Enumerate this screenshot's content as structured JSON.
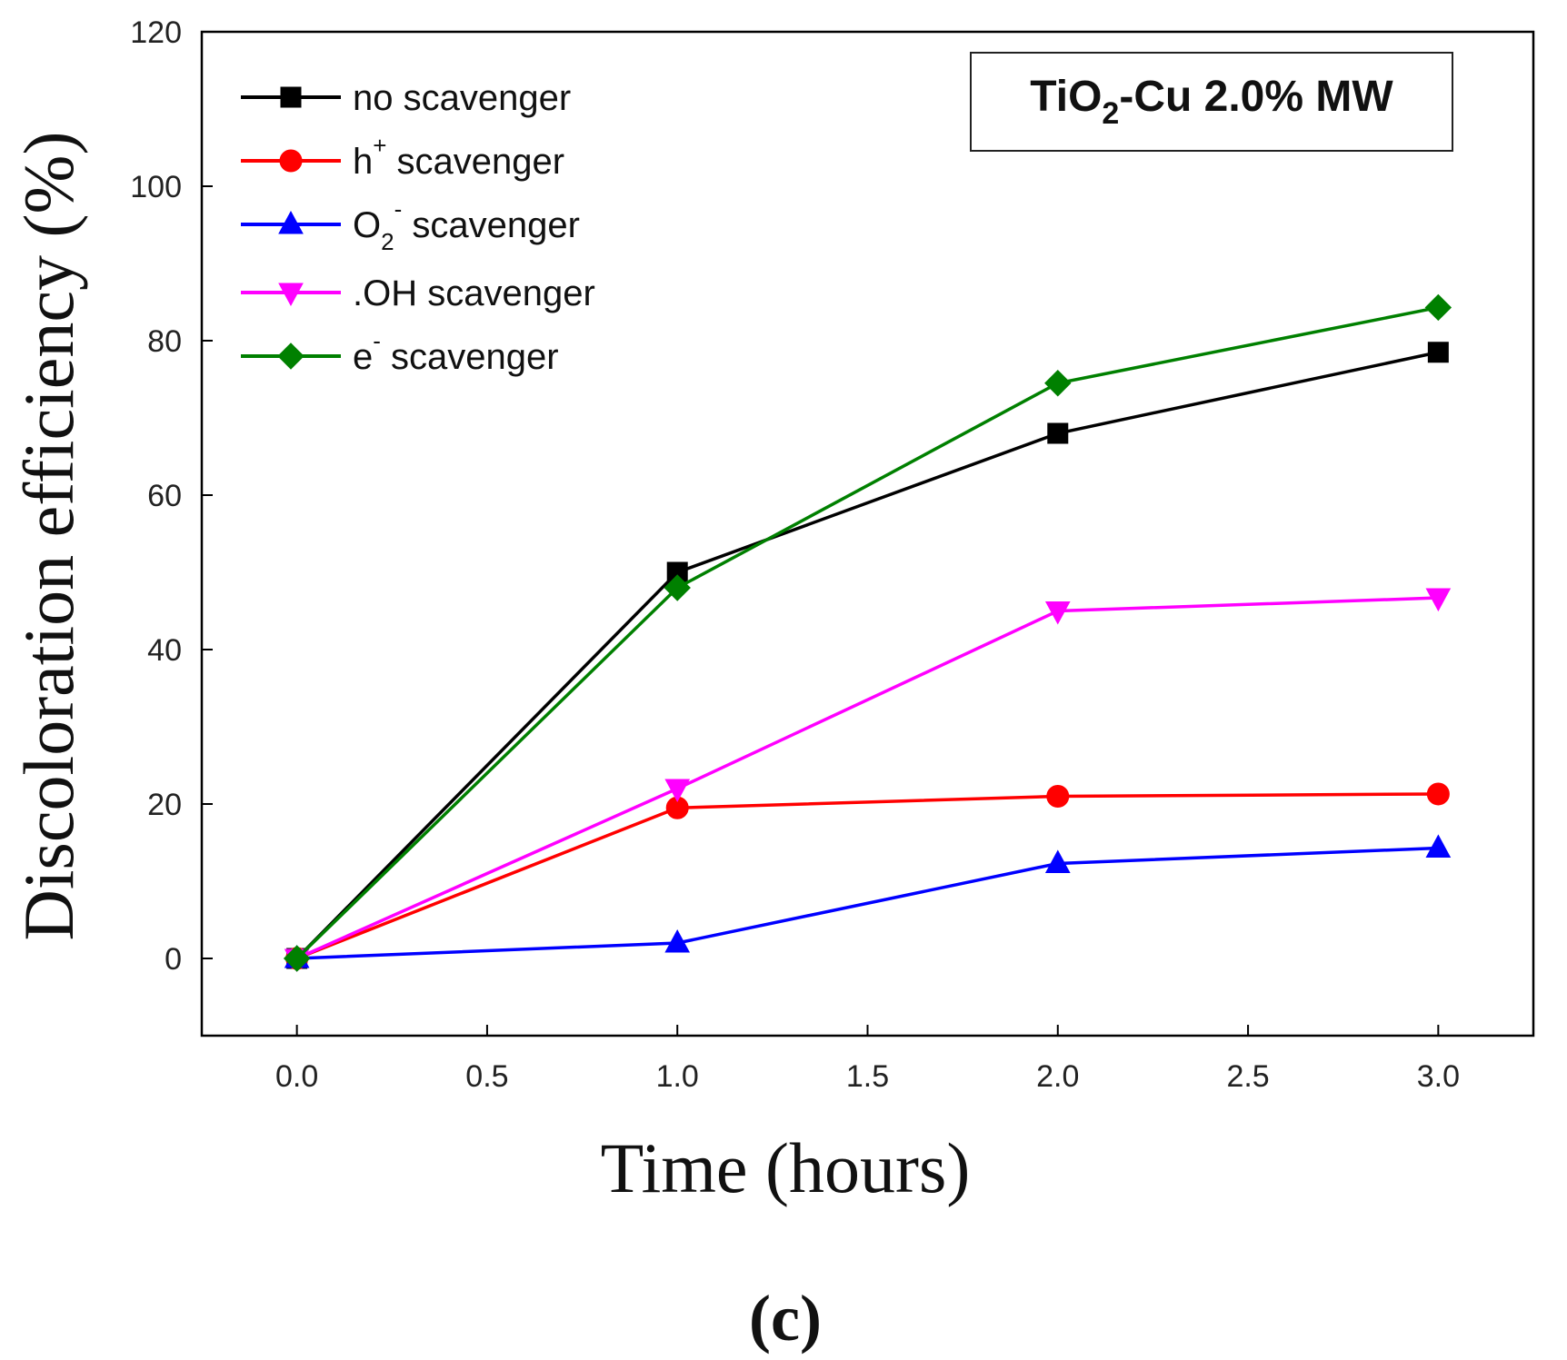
{
  "chart_data": {
    "type": "line",
    "xlabel": "Time (hours)",
    "ylabel": "Discoloration efficiency (%)",
    "xlim": [
      -0.25,
      3.25
    ],
    "ylim": [
      -10,
      120
    ],
    "xticks": [
      "0.0",
      "0.5",
      "1.0",
      "1.5",
      "2.0",
      "2.5",
      "3.0"
    ],
    "yticks": [
      "0",
      "20",
      "40",
      "60",
      "80",
      "100",
      "120"
    ],
    "grid": false,
    "legend_position": "top-left",
    "annotation": {
      "main": "TiO",
      "sub": "2",
      "rest": "-Cu 2.0% MW"
    },
    "panel_label": "(c)",
    "series": [
      {
        "name": "no scavenger",
        "base": "no scavenger",
        "sup": "",
        "sub": "",
        "color": "#000000",
        "marker": "square",
        "x": [
          0,
          1,
          2,
          3
        ],
        "values": [
          0,
          50,
          68,
          78.5
        ]
      },
      {
        "name": "h+ scavenger",
        "base": "h",
        "sup": "+",
        "sub": "",
        "rest": " scavenger",
        "color": "#ff0000",
        "marker": "circle",
        "x": [
          0,
          1,
          2,
          3
        ],
        "values": [
          0,
          19.5,
          21,
          21.3
        ]
      },
      {
        "name": "O2- scavenger",
        "base": "O",
        "sup": "-",
        "sub": "2",
        "rest": " scavenger",
        "color": "#0000ff",
        "marker": "triangle-up",
        "x": [
          0,
          1,
          2,
          3
        ],
        "values": [
          0,
          2,
          12.3,
          14.3
        ]
      },
      {
        "name": ".OH scavenger",
        "base": ".OH scavenger",
        "sup": "",
        "sub": "",
        "color": "#ff00ff",
        "marker": "triangle-down",
        "x": [
          0,
          1,
          2,
          3
        ],
        "values": [
          0,
          22,
          45,
          46.7
        ]
      },
      {
        "name": "e- scavenger",
        "base": "e",
        "sup": "-",
        "sub": "",
        "rest": " scavenger",
        "color": "#008000",
        "marker": "diamond",
        "x": [
          0,
          1,
          2,
          3
        ],
        "values": [
          0,
          48,
          74.5,
          84.3
        ]
      }
    ]
  }
}
